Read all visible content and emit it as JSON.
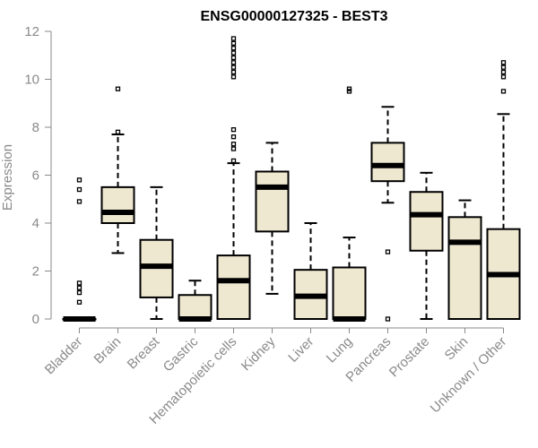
{
  "chart_data": {
    "type": "boxplot",
    "title": "ENSG00000127325 - BEST3",
    "xlabel": "",
    "ylabel": "Expression",
    "ylim": [
      0,
      12
    ],
    "yticks": [
      0,
      2,
      4,
      6,
      8,
      10,
      12
    ],
    "grid": false,
    "legend": "none",
    "colors": {
      "box_fill": "#efe8d1",
      "stroke": "#000000",
      "axis": "#8a8a8a"
    },
    "categories": [
      "Bladder",
      "Brain",
      "Breast",
      "Gastric",
      "Hematopoietic cells",
      "Kidney",
      "Liver",
      "Lung",
      "Pancreas",
      "Prostate",
      "Skin",
      "Unknown / Other"
    ],
    "boxes": [
      {
        "category": "Bladder",
        "min": 0,
        "q1": 0,
        "median": 0,
        "q3": 0,
        "max": 0,
        "outliers": [
          0.7,
          1.1,
          1.3,
          1.5,
          4.9,
          5.4,
          5.8
        ]
      },
      {
        "category": "Brain",
        "min": 2.75,
        "q1": 4.0,
        "median": 4.45,
        "q3": 5.5,
        "max": 7.7,
        "outliers": [
          7.8,
          9.6
        ]
      },
      {
        "category": "Breast",
        "min": 0,
        "q1": 0.9,
        "median": 2.2,
        "q3": 3.3,
        "max": 5.5,
        "outliers": []
      },
      {
        "category": "Gastric",
        "min": 0,
        "q1": 0,
        "median": 0,
        "q3": 1.0,
        "max": 1.6,
        "outliers": []
      },
      {
        "category": "Hematopoietic cells",
        "min": 0,
        "q1": 0,
        "median": 1.6,
        "q3": 2.65,
        "max": 6.5,
        "outliers": [
          6.6,
          7.1,
          7.3,
          7.6,
          7.9,
          10.1,
          10.3,
          10.5,
          10.7,
          10.9,
          11.1,
          11.3,
          11.5,
          11.7
        ]
      },
      {
        "category": "Kidney",
        "min": 1.05,
        "q1": 3.65,
        "median": 5.5,
        "q3": 6.15,
        "max": 7.35,
        "outliers": []
      },
      {
        "category": "Liver",
        "min": 0,
        "q1": 0,
        "median": 0.95,
        "q3": 2.05,
        "max": 4.0,
        "outliers": []
      },
      {
        "category": "Lung",
        "min": 0,
        "q1": 0,
        "median": 0,
        "q3": 2.15,
        "max": 3.4,
        "outliers": [
          9.5,
          9.6
        ]
      },
      {
        "category": "Pancreas",
        "min": 4.85,
        "q1": 5.75,
        "median": 6.4,
        "q3": 7.35,
        "max": 8.85,
        "outliers": [
          0,
          2.8
        ]
      },
      {
        "category": "Prostate",
        "min": 0,
        "q1": 2.85,
        "median": 4.35,
        "q3": 5.3,
        "max": 6.1,
        "outliers": []
      },
      {
        "category": "Skin",
        "min": 0,
        "q1": 0,
        "median": 3.2,
        "q3": 4.25,
        "max": 4.95,
        "outliers": []
      },
      {
        "category": "Unknown / Other",
        "min": 0,
        "q1": 0,
        "median": 1.85,
        "q3": 3.75,
        "max": 8.55,
        "outliers": [
          9.5,
          10.1,
          10.3,
          10.5,
          10.7
        ]
      }
    ]
  }
}
